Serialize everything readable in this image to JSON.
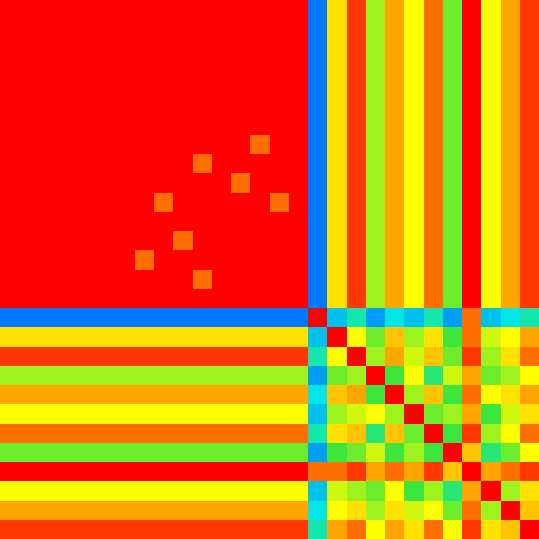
{
  "chart_data": {
    "type": "heatmap",
    "tick_labels": false,
    "zlim": [
      0,
      1
    ],
    "cells": [
      [
        1,
        1,
        1,
        1,
        1,
        1,
        1,
        1,
        1,
        1,
        1,
        1,
        1,
        1,
        1,
        1,
        0.2,
        0.75,
        0.95,
        0.6,
        0.85,
        0.7,
        0.9,
        0.55,
        1,
        0.7,
        0.85,
        0.95
      ],
      [
        1,
        1,
        1,
        1,
        1,
        1,
        1,
        1,
        1,
        1,
        1,
        1,
        1,
        1,
        1,
        1,
        0.2,
        0.75,
        0.95,
        0.6,
        0.85,
        0.7,
        0.9,
        0.55,
        1,
        0.7,
        0.85,
        0.95
      ],
      [
        1,
        1,
        1,
        1,
        1,
        1,
        1,
        1,
        1,
        1,
        1,
        1,
        1,
        1,
        1,
        1,
        0.2,
        0.75,
        0.95,
        0.6,
        0.85,
        0.7,
        0.9,
        0.55,
        1,
        0.7,
        0.85,
        0.95
      ],
      [
        1,
        1,
        1,
        1,
        1,
        1,
        1,
        1,
        1,
        1,
        1,
        1,
        1,
        1,
        1,
        1,
        0.2,
        0.75,
        0.95,
        0.6,
        0.85,
        0.7,
        0.9,
        0.55,
        1,
        0.7,
        0.85,
        0.95
      ],
      [
        1,
        1,
        1,
        1,
        1,
        1,
        1,
        1,
        1,
        1,
        1,
        1,
        1,
        1,
        1,
        1,
        0.2,
        0.75,
        0.95,
        0.6,
        0.85,
        0.7,
        0.9,
        0.55,
        1,
        0.7,
        0.85,
        0.95
      ],
      [
        1,
        1,
        1,
        1,
        1,
        1,
        1,
        1,
        1,
        1,
        1,
        1,
        1,
        1,
        1,
        1,
        0.2,
        0.75,
        0.95,
        0.6,
        0.85,
        0.7,
        0.9,
        0.55,
        1,
        0.7,
        0.85,
        0.95
      ],
      [
        1,
        1,
        1,
        1,
        1,
        1,
        1,
        1,
        1,
        1,
        1,
        1,
        1,
        1,
        1,
        1,
        0.2,
        0.75,
        0.95,
        0.6,
        0.85,
        0.7,
        0.9,
        0.55,
        1,
        0.7,
        0.85,
        0.95
      ],
      [
        1,
        1,
        1,
        1,
        1,
        1,
        1,
        1,
        1,
        1,
        1,
        1,
        1,
        0.9,
        1,
        1,
        0.2,
        0.75,
        0.95,
        0.6,
        0.85,
        0.7,
        0.9,
        0.55,
        1,
        0.7,
        0.85,
        0.95
      ],
      [
        1,
        1,
        1,
        1,
        1,
        1,
        1,
        1,
        1,
        1,
        0.9,
        1,
        1,
        1,
        1,
        1,
        0.2,
        0.75,
        0.95,
        0.6,
        0.85,
        0.7,
        0.9,
        0.55,
        1,
        0.7,
        0.85,
        0.95
      ],
      [
        1,
        1,
        1,
        1,
        1,
        1,
        1,
        1,
        1,
        1,
        1,
        1,
        0.9,
        1,
        1,
        1,
        0.2,
        0.75,
        0.95,
        0.6,
        0.85,
        0.7,
        0.9,
        0.55,
        1,
        0.7,
        0.85,
        0.95
      ],
      [
        1,
        1,
        1,
        1,
        1,
        1,
        1,
        1,
        0.9,
        1,
        1,
        1,
        1,
        1,
        0.9,
        1,
        0.2,
        0.75,
        0.95,
        0.6,
        0.85,
        0.7,
        0.9,
        0.55,
        1,
        0.7,
        0.85,
        0.95
      ],
      [
        1,
        1,
        1,
        1,
        1,
        1,
        1,
        1,
        1,
        1,
        1,
        1,
        1,
        1,
        1,
        1,
        0.2,
        0.75,
        0.95,
        0.6,
        0.85,
        0.7,
        0.9,
        0.55,
        1,
        0.7,
        0.85,
        0.95
      ],
      [
        1,
        1,
        1,
        1,
        1,
        1,
        1,
        1,
        1,
        0.9,
        1,
        1,
        1,
        1,
        1,
        1,
        0.2,
        0.75,
        0.95,
        0.6,
        0.85,
        0.7,
        0.9,
        0.55,
        1,
        0.7,
        0.85,
        0.95
      ],
      [
        1,
        1,
        1,
        1,
        1,
        1,
        1,
        0.9,
        1,
        1,
        1,
        1,
        1,
        1,
        1,
        1,
        0.2,
        0.75,
        0.95,
        0.6,
        0.85,
        0.7,
        0.9,
        0.55,
        1,
        0.7,
        0.85,
        0.95
      ],
      [
        1,
        1,
        1,
        1,
        1,
        1,
        1,
        1,
        1,
        1,
        0.9,
        1,
        1,
        1,
        1,
        1,
        0.2,
        0.75,
        0.95,
        0.6,
        0.85,
        0.7,
        0.9,
        0.55,
        1,
        0.7,
        0.85,
        0.95
      ],
      [
        1,
        1,
        1,
        1,
        1,
        1,
        1,
        1,
        1,
        1,
        1,
        1,
        1,
        1,
        1,
        1,
        0.2,
        0.75,
        0.95,
        0.6,
        0.85,
        0.7,
        0.9,
        0.55,
        1,
        0.7,
        0.85,
        0.95
      ],
      [
        0.2,
        0.2,
        0.2,
        0.2,
        0.2,
        0.2,
        0.2,
        0.2,
        0.2,
        0.2,
        0.2,
        0.2,
        0.2,
        0.2,
        0.2,
        0.2,
        1,
        0.3,
        0.4,
        0.25,
        0.35,
        0.3,
        0.4,
        0.25,
        0.9,
        0.3,
        0.35,
        0.4
      ],
      [
        0.75,
        0.75,
        0.75,
        0.75,
        0.75,
        0.75,
        0.75,
        0.75,
        0.75,
        0.75,
        0.75,
        0.75,
        0.75,
        0.75,
        0.75,
        0.75,
        0.3,
        1,
        0.7,
        0.55,
        0.8,
        0.6,
        0.75,
        0.5,
        0.9,
        0.65,
        0.7,
        0.85
      ],
      [
        0.95,
        0.95,
        0.95,
        0.95,
        0.95,
        0.95,
        0.95,
        0.95,
        0.95,
        0.95,
        0.95,
        0.95,
        0.95,
        0.95,
        0.95,
        0.95,
        0.4,
        0.7,
        1,
        0.6,
        0.85,
        0.65,
        0.8,
        0.55,
        0.95,
        0.6,
        0.75,
        0.9
      ],
      [
        0.6,
        0.6,
        0.6,
        0.6,
        0.6,
        0.6,
        0.6,
        0.6,
        0.6,
        0.6,
        0.6,
        0.6,
        0.6,
        0.6,
        0.6,
        0.6,
        0.25,
        0.55,
        0.6,
        1,
        0.5,
        0.7,
        0.45,
        0.65,
        0.85,
        0.55,
        0.6,
        0.7
      ],
      [
        0.85,
        0.85,
        0.85,
        0.85,
        0.85,
        0.85,
        0.85,
        0.85,
        0.85,
        0.85,
        0.85,
        0.85,
        0.85,
        0.85,
        0.85,
        0.85,
        0.35,
        0.8,
        0.85,
        0.5,
        1,
        0.6,
        0.8,
        0.5,
        0.9,
        0.7,
        0.75,
        0.85
      ],
      [
        0.7,
        0.7,
        0.7,
        0.7,
        0.7,
        0.7,
        0.7,
        0.7,
        0.7,
        0.7,
        0.7,
        0.7,
        0.7,
        0.7,
        0.7,
        0.7,
        0.3,
        0.6,
        0.65,
        0.7,
        0.6,
        1,
        0.55,
        0.6,
        0.85,
        0.5,
        0.65,
        0.75
      ],
      [
        0.9,
        0.9,
        0.9,
        0.9,
        0.9,
        0.9,
        0.9,
        0.9,
        0.9,
        0.9,
        0.9,
        0.9,
        0.9,
        0.9,
        0.9,
        0.9,
        0.4,
        0.75,
        0.8,
        0.45,
        0.8,
        0.55,
        1,
        0.5,
        0.95,
        0.6,
        0.7,
        0.9
      ],
      [
        0.55,
        0.55,
        0.55,
        0.55,
        0.55,
        0.55,
        0.55,
        0.55,
        0.55,
        0.55,
        0.55,
        0.55,
        0.55,
        0.55,
        0.55,
        0.55,
        0.25,
        0.5,
        0.55,
        0.65,
        0.5,
        0.6,
        0.5,
        1,
        0.8,
        0.45,
        0.55,
        0.7
      ],
      [
        1,
        1,
        1,
        1,
        1,
        1,
        1,
        1,
        1,
        1,
        1,
        1,
        1,
        1,
        1,
        1,
        0.9,
        0.9,
        0.95,
        0.85,
        0.9,
        0.85,
        0.95,
        0.8,
        1,
        0.85,
        0.9,
        0.95
      ],
      [
        0.7,
        0.7,
        0.7,
        0.7,
        0.7,
        0.7,
        0.7,
        0.7,
        0.7,
        0.7,
        0.7,
        0.7,
        0.7,
        0.7,
        0.7,
        0.7,
        0.3,
        0.65,
        0.6,
        0.55,
        0.7,
        0.5,
        0.6,
        0.45,
        0.85,
        1,
        0.6,
        0.75
      ],
      [
        0.85,
        0.85,
        0.85,
        0.85,
        0.85,
        0.85,
        0.85,
        0.85,
        0.85,
        0.85,
        0.85,
        0.85,
        0.85,
        0.85,
        0.85,
        0.85,
        0.35,
        0.7,
        0.75,
        0.6,
        0.75,
        0.65,
        0.7,
        0.55,
        0.9,
        0.6,
        1,
        0.8
      ],
      [
        0.95,
        0.95,
        0.95,
        0.95,
        0.95,
        0.95,
        0.95,
        0.95,
        0.95,
        0.95,
        0.95,
        0.95,
        0.95,
        0.95,
        0.95,
        0.95,
        0.4,
        0.85,
        0.9,
        0.7,
        0.85,
        0.75,
        0.9,
        0.7,
        0.95,
        0.75,
        0.8,
        1
      ]
    ]
  }
}
